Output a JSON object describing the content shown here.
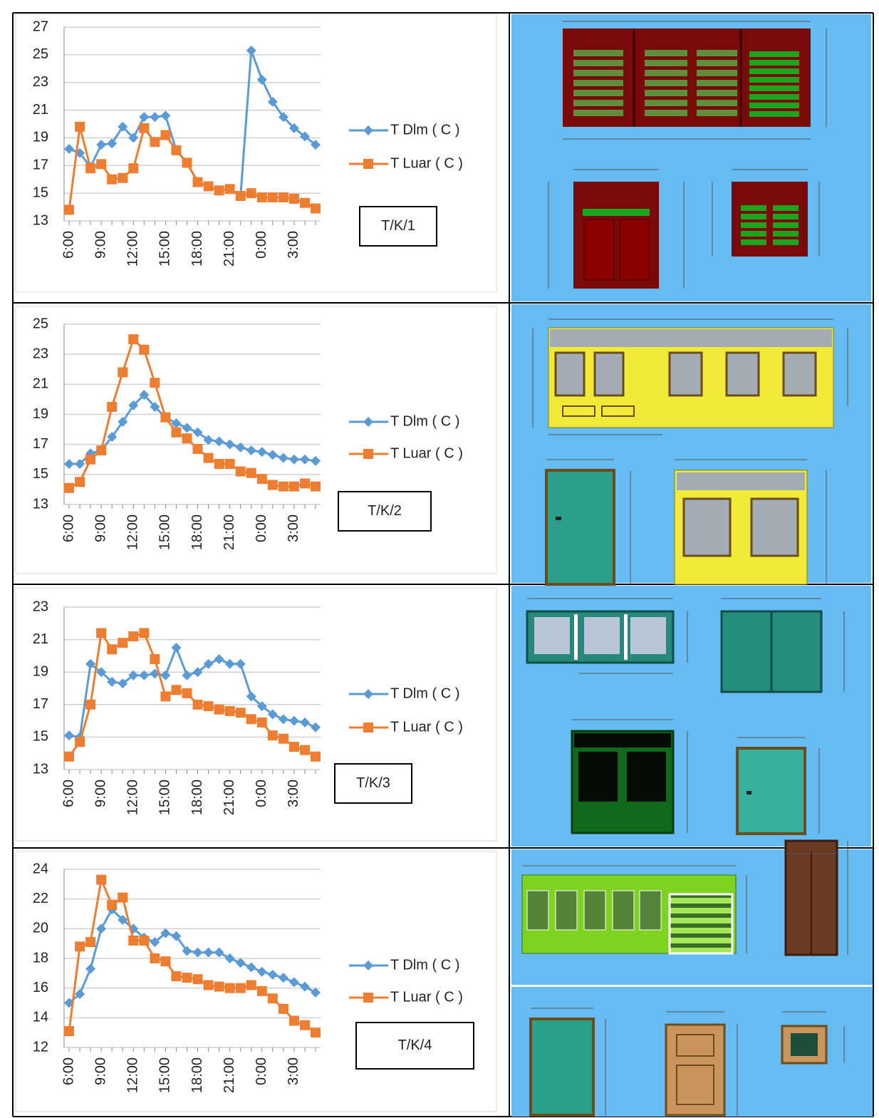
{
  "chart_data": [
    {
      "type": "line",
      "annotation": "T/K/1",
      "categories": [
        "6:00",
        null,
        null,
        "9:00",
        null,
        null,
        "12:00",
        null,
        null,
        "15:00",
        null,
        null,
        "18:00",
        null,
        null,
        "21:00",
        null,
        null,
        "0:00",
        null,
        null,
        "3:00",
        null,
        null
      ],
      "series": [
        {
          "name": "T Dlm ( C )",
          "color": "#5b9bd5",
          "values": [
            18.2,
            17.9,
            16.9,
            18.5,
            18.6,
            19.8,
            19.0,
            20.5,
            20.5,
            20.6,
            18.1,
            17.2,
            15.8,
            15.5,
            15.2,
            15.3,
            14.8,
            25.3,
            23.2,
            21.6,
            20.5,
            19.7,
            19.1,
            18.5
          ]
        },
        {
          "name": "T Luar ( C )",
          "color": "#ed7d31",
          "values": [
            13.8,
            19.8,
            16.8,
            17.1,
            16.0,
            16.1,
            16.8,
            19.7,
            18.7,
            19.2,
            18.1,
            17.2,
            15.8,
            15.5,
            15.2,
            15.3,
            14.8,
            15.0,
            14.7,
            14.7,
            14.7,
            14.6,
            14.3,
            13.9
          ]
        }
      ],
      "ylim": [
        13,
        27
      ],
      "yticks": [
        13,
        15,
        17,
        19,
        21,
        23,
        25,
        27
      ],
      "grid": true
    },
    {
      "type": "line",
      "annotation": "T/K/2",
      "categories": [
        "6:00",
        null,
        null,
        "9:00",
        null,
        null,
        "12:00",
        null,
        null,
        "15:00",
        null,
        null,
        "18:00",
        null,
        null,
        "21:00",
        null,
        null,
        "0:00",
        null,
        null,
        "3:00",
        null,
        null
      ],
      "series": [
        {
          "name": "T Dlm ( C )",
          "color": "#5b9bd5",
          "values": [
            15.7,
            15.7,
            16.4,
            16.6,
            17.5,
            18.5,
            19.6,
            20.3,
            19.5,
            18.8,
            18.4,
            18.1,
            17.8,
            17.3,
            17.2,
            17.0,
            16.8,
            16.6,
            16.5,
            16.3,
            16.1,
            16.0,
            16.0,
            15.9
          ]
        },
        {
          "name": "T Luar ( C )",
          "color": "#ed7d31",
          "values": [
            14.1,
            14.5,
            16.0,
            16.6,
            19.5,
            21.8,
            24.0,
            23.3,
            21.1,
            18.8,
            17.8,
            17.4,
            16.7,
            16.1,
            15.7,
            15.7,
            15.2,
            15.1,
            14.7,
            14.3,
            14.2,
            14.2,
            14.4,
            14.2
          ]
        }
      ],
      "ylim": [
        13,
        25
      ],
      "yticks": [
        13,
        15,
        17,
        19,
        21,
        23,
        25
      ],
      "grid": true
    },
    {
      "type": "line",
      "annotation": "T/K/3",
      "categories": [
        "6:00",
        null,
        null,
        "9:00",
        null,
        null,
        "12:00",
        null,
        null,
        "15:00",
        null,
        null,
        "18:00",
        null,
        null,
        "21:00",
        null,
        null,
        "0:00",
        null,
        null,
        "3:00",
        null,
        null
      ],
      "series": [
        {
          "name": "T Dlm ( C )",
          "color": "#5b9bd5",
          "values": [
            15.1,
            15.0,
            19.5,
            19.0,
            18.4,
            18.3,
            18.8,
            18.8,
            18.9,
            18.8,
            20.5,
            18.8,
            19.0,
            19.5,
            19.8,
            19.5,
            19.5,
            17.5,
            16.9,
            16.4,
            16.1,
            16.0,
            15.9,
            15.6
          ]
        },
        {
          "name": "T Luar ( C )",
          "color": "#ed7d31",
          "values": [
            13.8,
            14.7,
            17.0,
            21.4,
            20.4,
            20.8,
            21.2,
            21.4,
            19.8,
            17.5,
            17.9,
            17.7,
            17.0,
            16.9,
            16.7,
            16.6,
            16.5,
            16.1,
            15.9,
            15.1,
            14.9,
            14.4,
            14.2,
            13.8
          ]
        }
      ],
      "ylim": [
        13,
        23
      ],
      "yticks": [
        13,
        15,
        17,
        19,
        21,
        23
      ],
      "grid": true
    },
    {
      "type": "line",
      "annotation": "T/K/4",
      "categories": [
        "6:00",
        null,
        null,
        "9:00",
        null,
        null,
        "12:00",
        null,
        null,
        "15:00",
        null,
        null,
        "18:00",
        null,
        null,
        "21:00",
        null,
        null,
        "0:00",
        null,
        null,
        "3:00",
        null,
        null
      ],
      "series": [
        {
          "name": "T Dlm ( C )",
          "color": "#5b9bd5",
          "values": [
            15.0,
            15.6,
            17.3,
            20.0,
            21.3,
            20.6,
            20.0,
            19.4,
            19.1,
            19.7,
            19.5,
            18.5,
            18.4,
            18.4,
            18.4,
            18.0,
            17.7,
            17.4,
            17.1,
            16.9,
            16.7,
            16.4,
            16.1,
            15.7
          ]
        },
        {
          "name": "T Luar ( C )",
          "color": "#ed7d31",
          "values": [
            13.1,
            18.8,
            19.1,
            23.3,
            21.6,
            22.1,
            19.2,
            19.2,
            18.0,
            17.8,
            16.8,
            16.7,
            16.6,
            16.2,
            16.1,
            16.0,
            16.0,
            16.2,
            15.8,
            15.3,
            14.6,
            13.8,
            13.5,
            13.0
          ]
        }
      ],
      "ylim": [
        12,
        24
      ],
      "yticks": [
        12,
        14,
        16,
        18,
        20,
        22,
        24
      ],
      "grid": true
    }
  ]
}
